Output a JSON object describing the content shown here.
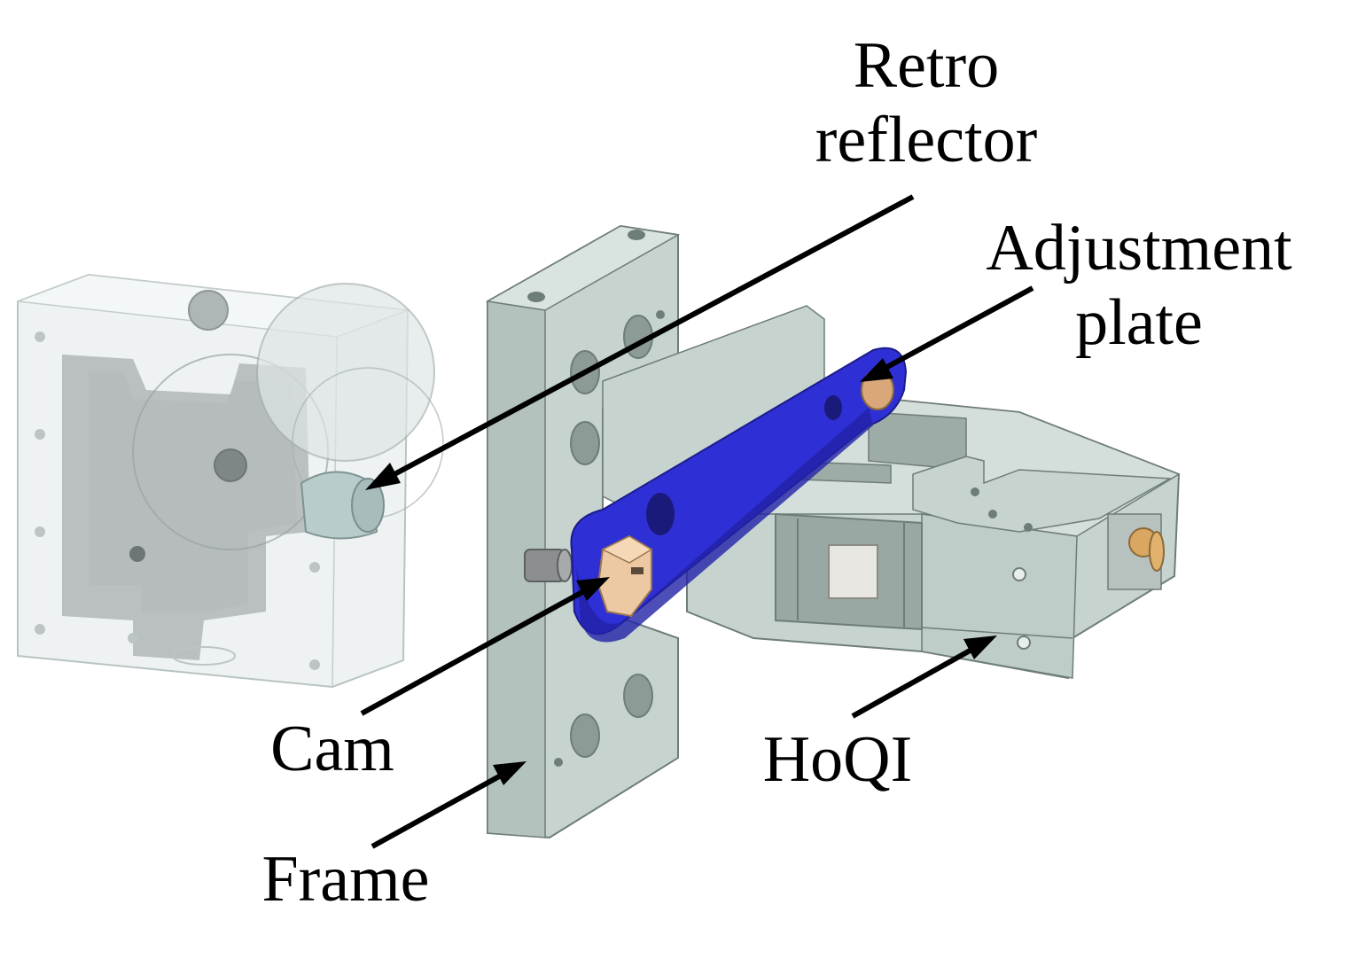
{
  "labels": {
    "retro_line1": "Retro",
    "retro_line2": "reflector",
    "adjust_line1": "Adjustment",
    "adjust_line2": "plate",
    "cam": "Cam",
    "frame": "Frame",
    "hoqi": "HoQI"
  },
  "colors": {
    "part_gray": "#c9d6d2",
    "part_gray_dark": "#8e9c98",
    "adjustment_plate": "#2f2fd6",
    "cam": "#e8b98a",
    "transparent_housing": "#e9eeee"
  }
}
